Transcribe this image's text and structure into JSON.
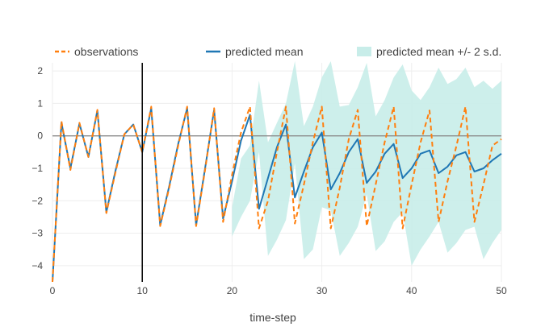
{
  "chart_data": {
    "type": "line",
    "xlabel": "time-step",
    "ylabel": "",
    "xlim": [
      0,
      50
    ],
    "ylim": [
      -4.5,
      2.25
    ],
    "x_ticks": [
      0,
      10,
      20,
      30,
      40,
      50
    ],
    "y_ticks": [
      -4,
      -3,
      -2,
      -1,
      0,
      1,
      2
    ],
    "grid": true,
    "legend_position": "top",
    "vertical_line_x": 10,
    "horizontal_line_y": 0,
    "series": [
      {
        "name": "observations",
        "style": "dashed",
        "color": "#ff7f0e",
        "x": [
          0,
          1,
          2,
          3,
          4,
          5,
          6,
          7,
          8,
          9,
          10,
          11,
          12,
          13,
          14,
          15,
          16,
          17,
          18,
          19,
          20,
          21,
          22,
          23,
          24,
          25,
          26,
          27,
          28,
          29,
          30,
          31,
          32,
          33,
          34,
          35,
          36,
          37,
          38,
          39,
          40,
          41,
          42,
          43,
          44,
          45,
          46,
          47,
          48,
          49,
          50
        ],
        "values": [
          -4.5,
          0.45,
          -1.05,
          0.4,
          -0.65,
          0.8,
          -2.38,
          -1.15,
          0.05,
          0.35,
          -0.5,
          0.9,
          -2.78,
          -1.6,
          -0.3,
          0.9,
          -2.78,
          -1.05,
          0.85,
          -2.65,
          -1.2,
          0.1,
          0.9,
          -2.85,
          -2.0,
          -0.5,
          0.9,
          -2.7,
          -1.5,
          -0.2,
          0.9,
          -2.85,
          -1.6,
          -0.1,
          0.8,
          -2.78,
          -1.5,
          -0.2,
          0.9,
          -2.85,
          -1.5,
          -0.2,
          0.78,
          -2.65,
          -1.4,
          -0.3,
          0.9,
          -2.65,
          -1.5,
          -0.3,
          -0.1
        ]
      },
      {
        "name": "predicted mean",
        "style": "solid",
        "color": "#1f77b4",
        "x": [
          0,
          1,
          2,
          3,
          4,
          5,
          6,
          7,
          8,
          9,
          10,
          11,
          12,
          13,
          14,
          15,
          16,
          17,
          18,
          19,
          20,
          21,
          22,
          23,
          24,
          25,
          26,
          27,
          28,
          29,
          30,
          31,
          32,
          33,
          34,
          35,
          36,
          37,
          38,
          39,
          40,
          41,
          42,
          43,
          44,
          45,
          46,
          47,
          48,
          49,
          50
        ],
        "values": [
          -4.5,
          0.4,
          -1.0,
          0.38,
          -0.65,
          0.78,
          -2.35,
          -1.1,
          0.05,
          0.35,
          -0.5,
          0.85,
          -2.75,
          -1.55,
          -0.25,
          0.85,
          -2.75,
          -1.0,
          0.8,
          -2.55,
          -1.4,
          -0.15,
          0.65,
          -2.25,
          -1.3,
          -0.35,
          0.35,
          -1.9,
          -1.1,
          -0.35,
          0.1,
          -1.65,
          -1.15,
          -0.5,
          -0.1,
          -1.45,
          -1.1,
          -0.55,
          -0.25,
          -1.3,
          -1.0,
          -0.55,
          -0.45,
          -1.15,
          -0.95,
          -0.6,
          -0.5,
          -1.1,
          -1.0,
          -0.75,
          -0.55
        ]
      },
      {
        "name": "predicted mean +/- 2 s.d.",
        "style": "band",
        "color": "#c8ede9",
        "x": [
          20,
          21,
          22,
          23,
          24,
          25,
          26,
          27,
          28,
          29,
          30,
          31,
          32,
          33,
          34,
          35,
          36,
          37,
          38,
          39,
          40,
          41,
          42,
          43,
          44,
          45,
          46,
          47,
          48,
          49,
          50
        ],
        "upper": [
          -2.2,
          -0.7,
          -0.3,
          1.7,
          -0.2,
          0.4,
          1.0,
          2.3,
          0.3,
          0.9,
          1.8,
          2.3,
          0.9,
          0.95,
          1.5,
          2.25,
          0.6,
          1.1,
          1.8,
          2.2,
          1.4,
          1.1,
          1.5,
          2.1,
          1.6,
          1.75,
          2.1,
          1.5,
          1.7,
          1.45,
          1.7
        ],
        "lower": [
          -3.1,
          -2.5,
          -2.0,
          -0.5,
          -3.7,
          -3.2,
          -2.6,
          -0.85,
          -3.8,
          -3.5,
          -2.2,
          -2.3,
          -3.7,
          -3.3,
          -2.8,
          -1.8,
          -3.55,
          -3.25,
          -2.65,
          -2.35,
          -4.0,
          -3.5,
          -3.1,
          -2.65,
          -3.6,
          -3.3,
          -2.9,
          -2.8,
          -3.8,
          -3.3,
          -2.9
        ]
      }
    ]
  }
}
